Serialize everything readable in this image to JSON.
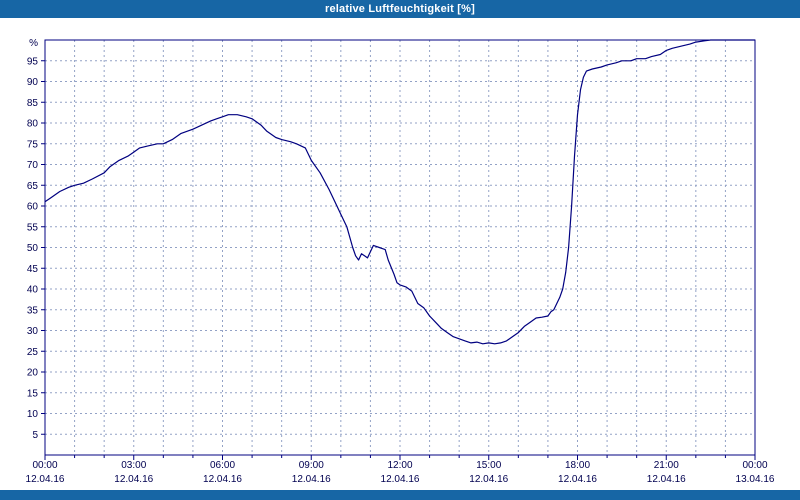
{
  "window": {
    "title": "relative Luftfeuchtigkeit [%]"
  },
  "colors": {
    "titlebar_bg": "#1766a5",
    "titlebar_text": "#ffffff",
    "plot_bg": "#ffffff",
    "frame": "#000080",
    "grid": "#93a2c6",
    "line": "#000080",
    "axis_text": "#000050"
  },
  "chart_data": {
    "type": "line",
    "title": "relative Luftfeuchtigkeit [%]",
    "xlabel": "",
    "ylabel": "%",
    "xlim": [
      0,
      24
    ],
    "ylim": [
      0,
      100
    ],
    "grid": true,
    "legend": "none",
    "y_ticks": [
      5,
      10,
      15,
      20,
      25,
      30,
      35,
      40,
      45,
      50,
      55,
      60,
      65,
      70,
      75,
      80,
      85,
      90,
      95
    ],
    "x_ticks": [
      {
        "hour": 0,
        "time": "00:00",
        "date": "12.04.16"
      },
      {
        "hour": 3,
        "time": "03:00",
        "date": "12.04.16"
      },
      {
        "hour": 6,
        "time": "06:00",
        "date": "12.04.16"
      },
      {
        "hour": 9,
        "time": "09:00",
        "date": "12.04.16"
      },
      {
        "hour": 12,
        "time": "12:00",
        "date": "12.04.16"
      },
      {
        "hour": 15,
        "time": "15:00",
        "date": "12.04.16"
      },
      {
        "hour": 18,
        "time": "18:00",
        "date": "12.04.16"
      },
      {
        "hour": 21,
        "time": "21:00",
        "date": "12.04.16"
      },
      {
        "hour": 24,
        "time": "00:00",
        "date": "13.04.16"
      }
    ],
    "series": [
      {
        "name": "relative Luftfeuchtigkeit [%]",
        "x": [
          0,
          0.2,
          0.5,
          0.8,
          1,
          1.3,
          1.6,
          2,
          2.2,
          2.5,
          2.8,
          3,
          3.2,
          3.5,
          3.8,
          4,
          4.3,
          4.6,
          5,
          5.3,
          5.6,
          5.8,
          6,
          6.2,
          6.5,
          6.8,
          7,
          7.3,
          7.5,
          7.8,
          8,
          8.3,
          8.5,
          8.8,
          9,
          9.3,
          9.6,
          9.8,
          10,
          10.2,
          10.4,
          10.5,
          10.6,
          10.7,
          10.8,
          10.9,
          11,
          11.1,
          11.3,
          11.5,
          11.6,
          11.8,
          11.9,
          12,
          12.2,
          12.4,
          12.6,
          12.8,
          13,
          13.2,
          13.4,
          13.6,
          13.8,
          14,
          14.2,
          14.4,
          14.6,
          14.8,
          15,
          15.2,
          15.4,
          15.6,
          15.8,
          16,
          16.2,
          16.4,
          16.6,
          16.8,
          17,
          17.1,
          17.2,
          17.3,
          17.4,
          17.5,
          17.6,
          17.7,
          17.8,
          17.9,
          18,
          18.1,
          18.2,
          18.3,
          18.5,
          18.8,
          19,
          19.3,
          19.5,
          19.8,
          20,
          20.3,
          20.5,
          20.8,
          21,
          21.2,
          21.5,
          21.8,
          22,
          22.3,
          22.5,
          23,
          23.5,
          24
        ],
        "y": [
          61,
          62,
          63.5,
          64.5,
          65,
          65.5,
          66.5,
          68,
          69.5,
          71,
          72,
          73,
          74,
          74.5,
          75,
          75,
          76,
          77.5,
          78.5,
          79.5,
          80.5,
          81,
          81.5,
          82,
          82,
          81.5,
          81,
          79.5,
          78,
          76.5,
          76,
          75.5,
          75,
          74,
          71,
          68,
          64,
          61,
          58,
          55,
          50,
          48,
          47,
          48.5,
          48,
          47.5,
          49,
          50.5,
          50,
          49.5,
          47,
          43.5,
          41.5,
          41,
          40.5,
          39.5,
          36.5,
          35.5,
          33.5,
          32,
          30.5,
          29.5,
          28.5,
          28,
          27.5,
          27,
          27.2,
          26.8,
          27,
          26.8,
          27,
          27.5,
          28.5,
          29.5,
          31,
          32,
          33,
          33.2,
          33.5,
          34.5,
          35,
          36.5,
          38,
          40,
          44,
          50,
          60,
          72,
          82,
          88,
          91,
          92.5,
          93,
          93.5,
          94,
          94.5,
          95,
          95,
          95.5,
          95.5,
          96,
          96.5,
          97.5,
          98,
          98.5,
          99,
          99.5,
          99.8,
          100,
          100,
          100,
          100
        ]
      }
    ]
  }
}
